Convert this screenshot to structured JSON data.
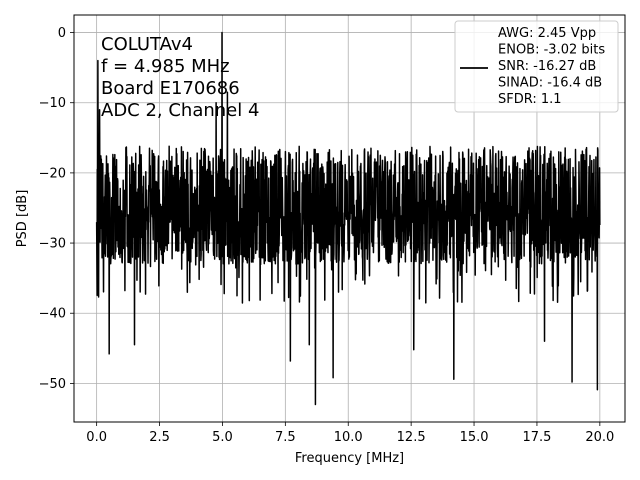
{
  "chart_data": {
    "type": "line",
    "title": "",
    "xlabel": "Frequency [MHz]",
    "ylabel": "PSD [dB]",
    "xlim": [
      -0.9,
      21.0
    ],
    "ylim": [
      -55.5,
      2.5
    ],
    "xticks": [
      0.0,
      2.5,
      5.0,
      7.5,
      10.0,
      12.5,
      15.0,
      17.5,
      20.0
    ],
    "xtick_labels": [
      "0.0",
      "2.5",
      "5.0",
      "7.5",
      "10.0",
      "12.5",
      "15.0",
      "17.5",
      "20.0"
    ],
    "yticks": [
      0,
      -10,
      -20,
      -30,
      -40,
      -50
    ],
    "ytick_labels": [
      "0",
      "−10",
      "−20",
      "−30",
      "−40",
      "−50"
    ],
    "grid": true,
    "series_color": "#000000",
    "annotations": [
      "COLUTAv4",
      "f = 4.985 MHz",
      "Board E170686",
      "ADC 2, Channel 4"
    ],
    "legend": {
      "placement": "top-right",
      "lines": [
        "AWG: 2.45 Vpp",
        "ENOB: -3.02 bits",
        "SNR: -16.27 dB",
        "SINAD: -16.4 dB",
        "SFDR: 1.1"
      ]
    },
    "series": [
      {
        "x_range": [
          0.0,
          20.0
        ],
        "n_points": 2048,
        "noise_floor_db": -25,
        "noise_band_db": [
          -33,
          -15
        ],
        "min_db": -53,
        "peaks": [
          {
            "x": 4.985,
            "y": 0.0
          },
          {
            "x": 0.05,
            "y": -4.0
          },
          {
            "x": 0.12,
            "y": -11.0
          },
          {
            "x": 4.75,
            "y": -10.0
          },
          {
            "x": 5.2,
            "y": -8.5
          }
        ],
        "dips": [
          {
            "x": 0.5,
            "y": -45.8
          },
          {
            "x": 1.5,
            "y": -44.5
          },
          {
            "x": 7.7,
            "y": -46.8
          },
          {
            "x": 8.45,
            "y": -44.5
          },
          {
            "x": 8.7,
            "y": -53.0
          },
          {
            "x": 9.4,
            "y": -49.2
          },
          {
            "x": 12.6,
            "y": -45.2
          },
          {
            "x": 14.2,
            "y": -49.4
          },
          {
            "x": 17.8,
            "y": -44.0
          },
          {
            "x": 18.9,
            "y": -49.8
          },
          {
            "x": 19.9,
            "y": -50.9
          }
        ]
      }
    ]
  }
}
